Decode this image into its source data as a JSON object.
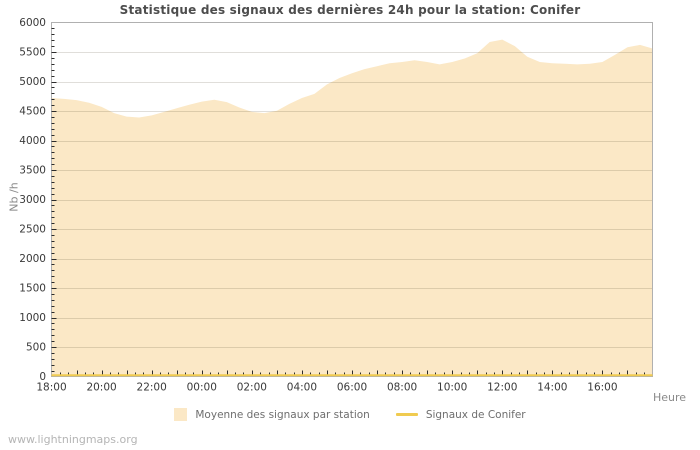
{
  "page": {
    "title": "Statistique des signaux des dernières 24h pour la station: Conifer",
    "watermark": "www.lightningmaps.org"
  },
  "axes": {
    "x_label": "Heure",
    "y_label": "Nb /h"
  },
  "legend": {
    "items": [
      {
        "label": "Moyenne des signaux par station",
        "swatch": "area",
        "color": "#FBE8C6"
      },
      {
        "label": "Signaux de Conifer",
        "swatch": "line",
        "color": "#F0CB50"
      }
    ]
  },
  "colors": {
    "area_fill": "#FBE8C6",
    "conifer_line": "#F0CB50",
    "grid_line_rgba": "rgba(70,58,34,0.17)",
    "plot_border": "#b0b0b0",
    "tick_mark": "#2b2b2b",
    "title_text": "#4d4d4d",
    "tick_text": "#3a3a3a",
    "axis_title_text": "#8a8a8a",
    "legend_text": "#6e6e6e",
    "watermark_text": "#b5b5b5"
  },
  "chart_data": {
    "type": "area",
    "title": "Statistique des signaux des dernières 24h pour la station: Conifer",
    "xlabel": "Heure",
    "ylabel": "Nb /h",
    "x_start": "18:00",
    "x_interval_minutes": 30,
    "x_total_hours": 24,
    "x_tick_labels": [
      "18:00",
      "20:00",
      "22:00",
      "00:00",
      "02:00",
      "04:00",
      "06:00",
      "08:00",
      "10:00",
      "12:00",
      "14:00",
      "16:00"
    ],
    "x_label_every_minutes": 120,
    "x_minor_tick_minutes": 20,
    "x_major_tick_minutes": 60,
    "ylim": [
      0,
      6000
    ],
    "y_tick_step": 500,
    "y_minor_tick_step": 100,
    "grid": true,
    "legend_position": "bottom",
    "series": [
      {
        "name": "Moyenne des signaux par station",
        "type": "area",
        "color": "#FBE8C6",
        "values": [
          4720,
          4705,
          4685,
          4640,
          4570,
          4465,
          4405,
          4390,
          4425,
          4485,
          4545,
          4605,
          4660,
          4690,
          4650,
          4560,
          4485,
          4465,
          4505,
          4620,
          4720,
          4790,
          4950,
          5060,
          5140,
          5210,
          5260,
          5310,
          5330,
          5360,
          5330,
          5290,
          5330,
          5390,
          5480,
          5670,
          5710,
          5600,
          5420,
          5330,
          5310,
          5300,
          5290,
          5300,
          5330,
          5450,
          5580,
          5620,
          5560
        ]
      },
      {
        "name": "Signaux de Conifer",
        "type": "line",
        "color": "#F0CB50",
        "values": [
          0,
          0,
          0,
          0,
          0,
          0,
          0,
          0,
          0,
          0,
          0,
          0,
          0,
          0,
          0,
          0,
          0,
          0,
          0,
          0,
          0,
          0,
          0,
          0,
          0,
          0,
          0,
          0,
          0,
          0,
          0,
          0,
          0,
          0,
          0,
          0,
          0,
          0,
          0,
          0,
          0,
          0,
          0,
          0,
          0,
          0,
          0,
          0,
          0
        ]
      }
    ]
  }
}
